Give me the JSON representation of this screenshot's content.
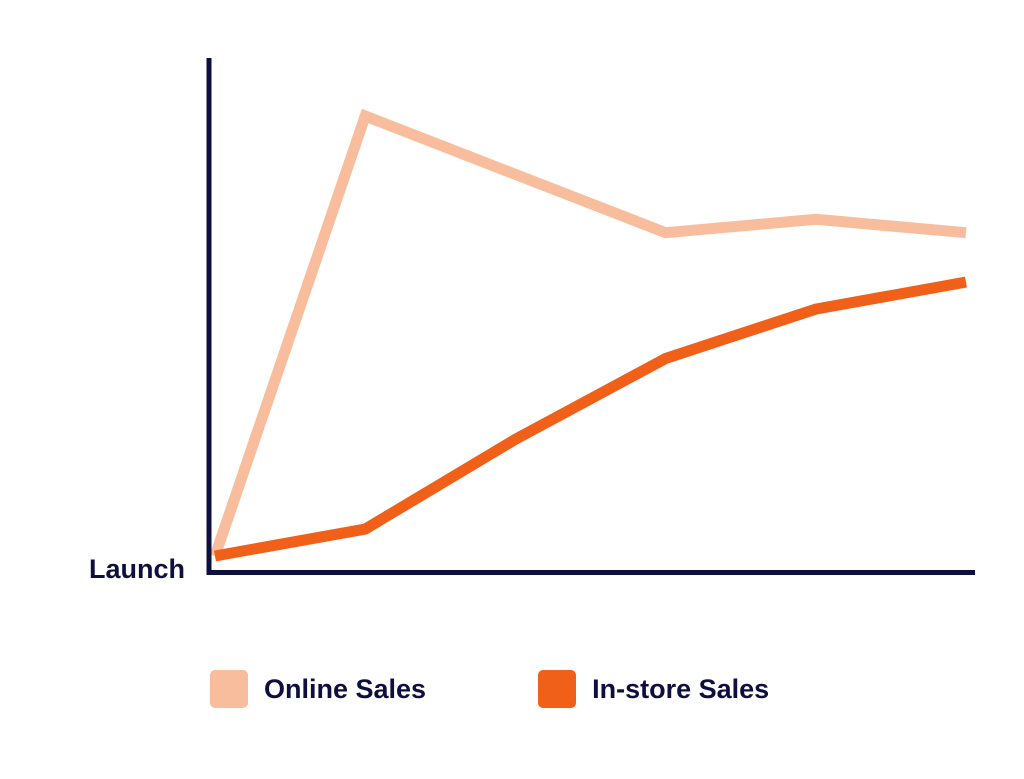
{
  "chart_data": {
    "type": "line",
    "title": "",
    "xlabel": "",
    "ylabel": "",
    "x": [
      0,
      1,
      2,
      3,
      4,
      5
    ],
    "x_tick_labels": [
      "Launch"
    ],
    "xlim": [
      0,
      5.05
    ],
    "ylim": [
      0,
      100
    ],
    "grid": false,
    "legend_position": "bottom",
    "series": [
      {
        "name": "Online Sales",
        "color": "#f8bd9c",
        "values": [
          2,
          100,
          87,
          74,
          77,
          74
        ]
      },
      {
        "name": "In-store Sales",
        "color": "#f06018",
        "values": [
          2,
          8,
          28,
          46,
          57,
          63
        ]
      }
    ]
  }
}
